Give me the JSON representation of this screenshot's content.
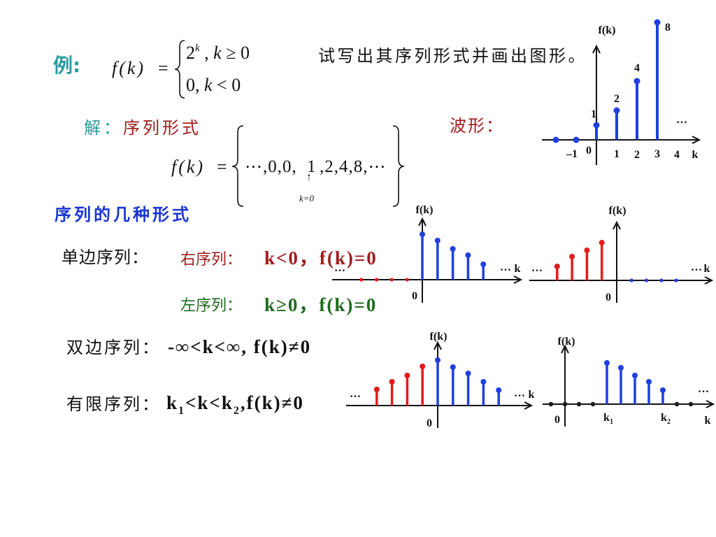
{
  "colors": {
    "teal": "#2a9c9e",
    "dark_red": "#a11c1c",
    "dark_green": "#1d6b1d",
    "title_blue": "#1a35d4",
    "text_black": "#111111",
    "stem_blue": "#1f3fe0",
    "stem_red": "#e31b1b",
    "dot_black": "#1a1a1a"
  },
  "slide": {
    "example": {
      "label": "例:",
      "lhs": "f(k)",
      "equals": "=",
      "case1_base": "2",
      "case1_exp": "k",
      "case1_comma": ",",
      "case1_var": "k",
      "case1_rel": "≥ 0",
      "case2_value": "0,",
      "case2_var": "k",
      "case2_rel": "< 0"
    },
    "instruction": "试写出其序列形式并画出图形。",
    "solution": {
      "label": "解：",
      "text": "序列形式"
    },
    "waveform_label": "波形：",
    "sequence_form": {
      "lhs": "f(k)",
      "equals": "=",
      "before": "⋯,0,0,",
      "marked": "1",
      "after": ",2,4,8,⋯",
      "arrow": "↑",
      "note": "k=0"
    },
    "section_title": "序列的几种形式",
    "one_sided": {
      "label": "单边序列：",
      "right": {
        "label": "右序列：",
        "condition": "k<0，f(k)=0"
      },
      "left": {
        "label": "左序列：",
        "condition": "k≥0，f(k)=0"
      }
    },
    "two_sided": {
      "label": "双边序列：",
      "condition": "-∞<k<∞, f(k)≠0"
    },
    "finite": {
      "label": "有限序列：",
      "cond_k": "k",
      "cond_sub1": "1",
      "cond_mid": "<k<k",
      "cond_sub2": "2",
      "cond_end": ",f(k)≠0"
    }
  },
  "plots": {
    "example_waveform": {
      "type": "stem",
      "y_label": "f(k)",
      "x_label": "k",
      "ellipsis": "…",
      "x_ticks": [
        "–1",
        "0",
        "1",
        "2",
        "3",
        "4"
      ],
      "points": [
        {
          "k": -2,
          "v": 0,
          "color": "stem_blue"
        },
        {
          "k": -1,
          "v": 0,
          "color": "stem_blue"
        },
        {
          "k": 0,
          "v": 1,
          "label": "1",
          "color": "stem_blue"
        },
        {
          "k": 1,
          "v": 2,
          "label": "2",
          "color": "stem_blue"
        },
        {
          "k": 2,
          "v": 4,
          "label": "4",
          "color": "stem_blue"
        },
        {
          "k": 3,
          "v": 8,
          "label": "8",
          "color": "stem_blue"
        }
      ]
    },
    "right_sided": {
      "type": "stem",
      "y_label": "f(k)",
      "x_label": "k",
      "origin_label": "0",
      "ellipsis": "…",
      "points": [
        {
          "k": -4,
          "v": 0,
          "color": "stem_red"
        },
        {
          "k": -3,
          "v": 0,
          "color": "stem_red"
        },
        {
          "k": -2,
          "v": 0,
          "color": "stem_red"
        },
        {
          "k": -1,
          "v": 0,
          "color": "stem_red"
        },
        {
          "k": 0,
          "v": 6.5,
          "color": "stem_blue"
        },
        {
          "k": 1,
          "v": 5.6,
          "color": "stem_blue"
        },
        {
          "k": 2,
          "v": 4.4,
          "color": "stem_blue"
        },
        {
          "k": 3,
          "v": 3.5,
          "color": "stem_blue"
        },
        {
          "k": 4,
          "v": 2.2,
          "color": "stem_blue"
        }
      ]
    },
    "left_sided": {
      "type": "stem",
      "y_label": "f(k)",
      "x_label": "k",
      "origin_label": "0",
      "ellipsis": "…",
      "points": [
        {
          "k": -4,
          "v": 2.0,
          "color": "stem_red"
        },
        {
          "k": -3,
          "v": 3.4,
          "color": "stem_red"
        },
        {
          "k": -2,
          "v": 4.3,
          "color": "stem_red"
        },
        {
          "k": -1,
          "v": 5.4,
          "color": "stem_red"
        },
        {
          "k": 1,
          "v": 0,
          "color": "stem_blue"
        },
        {
          "k": 2,
          "v": 0,
          "color": "stem_blue"
        },
        {
          "k": 3,
          "v": 0,
          "color": "stem_blue"
        },
        {
          "k": 4,
          "v": 0,
          "color": "stem_blue"
        }
      ]
    },
    "two_sided": {
      "type": "stem",
      "y_label": "f(k)",
      "x_label": "k",
      "origin_label": "0",
      "ellipsis": "…",
      "points": [
        {
          "k": -4,
          "v": 2.3,
          "color": "stem_red"
        },
        {
          "k": -3,
          "v": 3.4,
          "color": "stem_red"
        },
        {
          "k": -2,
          "v": 4.3,
          "color": "stem_red"
        },
        {
          "k": -1,
          "v": 5.6,
          "color": "stem_red"
        },
        {
          "k": 0,
          "v": 6.5,
          "color": "stem_blue"
        },
        {
          "k": 1,
          "v": 5.5,
          "color": "stem_blue"
        },
        {
          "k": 2,
          "v": 4.6,
          "color": "stem_blue"
        },
        {
          "k": 3,
          "v": 3.4,
          "color": "stem_blue"
        },
        {
          "k": 4,
          "v": 2.2,
          "color": "stem_blue"
        }
      ]
    },
    "finite": {
      "type": "stem",
      "y_label": "f(k)",
      "x_label": "k",
      "origin_label": "0",
      "ellipsis": "…",
      "k1": {
        "var": "k",
        "sub": "1"
      },
      "k2": {
        "var": "k",
        "sub": "2"
      },
      "points": [
        {
          "k": -1,
          "v": 0,
          "color": "dot_black"
        },
        {
          "k": 0,
          "v": 0,
          "color": "dot_black"
        },
        {
          "k": 1,
          "v": 0,
          "color": "dot_black"
        },
        {
          "k": 2,
          "v": 0,
          "color": "dot_black"
        },
        {
          "k": 3,
          "v": 5.9,
          "color": "stem_blue"
        },
        {
          "k": 4,
          "v": 5.2,
          "color": "stem_blue"
        },
        {
          "k": 5,
          "v": 4.1,
          "color": "stem_blue"
        },
        {
          "k": 6,
          "v": 3.2,
          "color": "stem_blue"
        },
        {
          "k": 7,
          "v": 2.0,
          "color": "stem_blue"
        },
        {
          "k": 8,
          "v": 0,
          "color": "dot_black"
        },
        {
          "k": 9,
          "v": 0,
          "color": "dot_black"
        }
      ]
    }
  }
}
